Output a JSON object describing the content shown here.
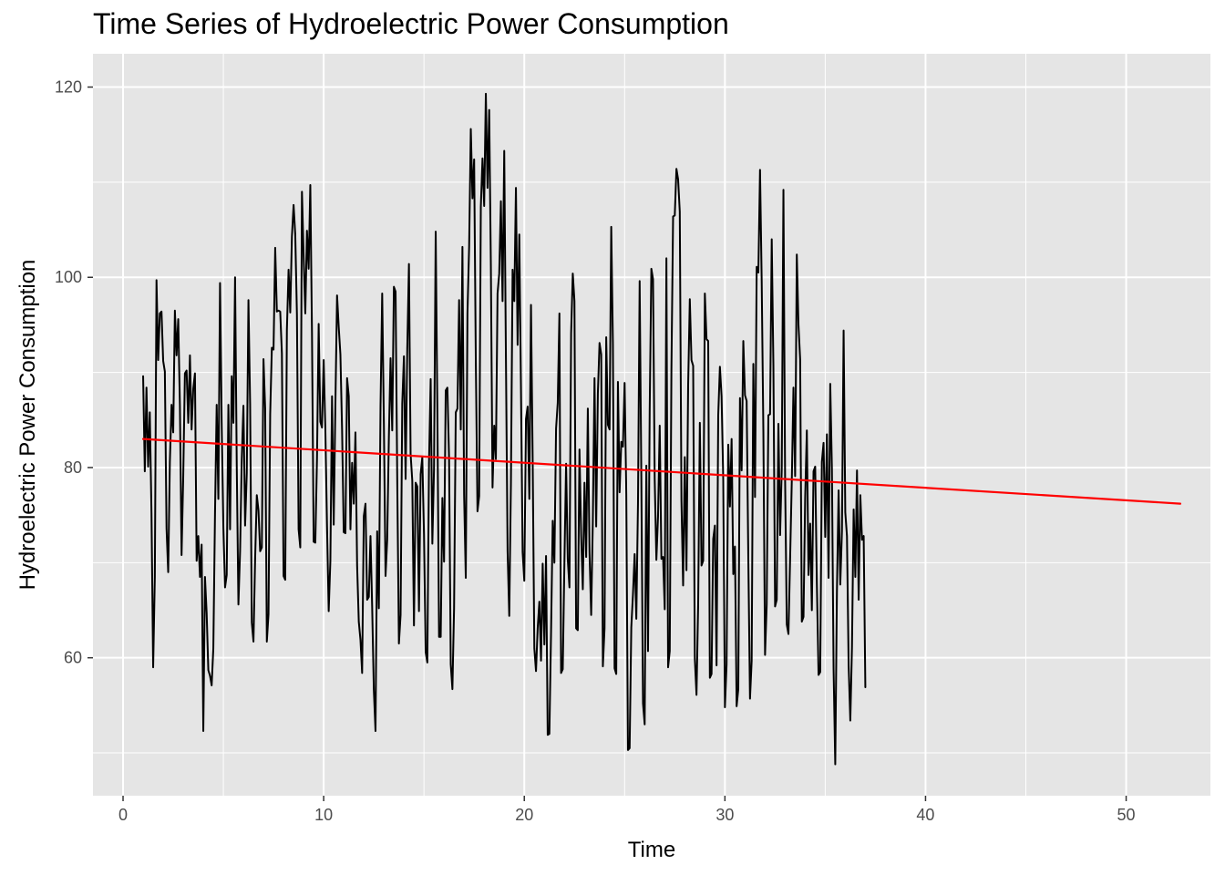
{
  "chart_data": {
    "type": "line",
    "title": "Time Series of Hydroelectric Power Consumption",
    "xlabel": "Time",
    "ylabel": "Hydroelectric Power Consumption",
    "xlim": [
      -1.5,
      54.2
    ],
    "ylim": [
      45.5,
      123.5
    ],
    "x_ticks": [
      0,
      10,
      20,
      30,
      40,
      50
    ],
    "y_ticks": [
      60,
      80,
      100,
      120
    ],
    "grid": true,
    "background": "#e5e5e5",
    "grid_color": "#ffffff",
    "series": [
      {
        "name": "",
        "color": "#000000",
        "x_start": 1.0,
        "x_step": 0.0833333,
        "values": [
          89.6,
          79.6,
          88.4,
          80.1,
          85.8,
          75.2,
          59.0,
          68.5,
          99.7,
          91.3,
          96.2,
          96.4,
          91.2,
          90.1,
          73.6,
          69.0,
          80.6,
          86.6,
          83.7,
          96.5,
          91.8,
          95.6,
          86.5,
          70.8,
          79.1,
          89.9,
          90.2,
          84.7,
          91.8,
          84.0,
          88.3,
          89.9,
          70.2,
          72.8,
          68.5,
          71.9,
          52.3,
          68.5,
          64.7,
          58.7,
          58.1,
          57.1,
          61.0,
          75.2,
          86.6,
          76.7,
          99.4,
          84.8,
          73.7,
          67.4,
          68.7,
          86.6,
          73.5,
          89.6,
          84.7,
          100.0,
          80.3,
          65.6,
          71.2,
          80.9,
          86.5,
          73.9,
          79.4,
          97.6,
          86.7,
          63.7,
          61.7,
          70.4,
          77.1,
          75.5,
          71.2,
          71.6,
          91.4,
          86.2,
          61.7,
          64.6,
          85.6,
          92.6,
          92.4,
          103.1,
          96.4,
          96.5,
          96.4,
          92.0,
          68.6,
          68.2,
          94.5,
          100.8,
          96.3,
          104.3,
          107.6,
          104.5,
          96.1,
          73.5,
          71.6,
          109.0,
          102.3,
          96.2,
          104.9,
          100.9,
          109.7,
          94.2,
          72.2,
          72.1,
          80.9,
          95.1,
          84.8,
          84.2,
          91.3,
          84.0,
          73.8,
          64.9,
          70.2,
          87.5,
          74.0,
          86.5,
          98.1,
          94.8,
          91.9,
          84.0,
          73.2,
          73.1,
          89.4,
          87.5,
          73.5,
          80.5,
          76.2,
          83.7,
          69.7,
          63.8,
          61.9,
          58.4,
          74.9,
          76.2,
          66.1,
          66.4,
          72.8,
          65.3,
          56.6,
          52.3,
          73.3,
          65.2,
          86.5,
          98.3,
          84.7,
          68.6,
          72.4,
          83.2,
          91.5,
          83.9,
          99.0,
          98.5,
          78.7,
          61.5,
          64.5,
          86.7,
          91.7,
          78.8,
          92.5,
          101.4,
          81.4,
          78.6,
          63.4,
          78.4,
          78.0,
          64.9,
          79.3,
          81.1,
          73.0,
          60.6,
          59.5,
          80.4,
          89.3,
          72.0,
          79.9,
          104.8,
          86.1,
          62.2,
          62.2,
          76.8,
          70.1,
          88.1,
          88.4,
          81.0,
          59.3,
          56.7,
          65.2,
          85.8,
          86.2,
          97.6,
          84.0,
          103.2,
          77.1,
          68.4,
          96.2,
          103.2,
          115.6,
          108.3,
          112.4,
          91.1,
          75.4,
          77.0,
          107.4,
          112.5,
          107.5,
          119.3,
          109.4,
          117.6,
          101.2,
          77.9,
          84.4,
          80.9,
          98.3,
          100.4,
          108.0,
          97.5,
          113.3,
          91.8,
          71.2,
          64.4,
          78.3,
          100.8,
          97.5,
          109.4,
          92.9,
          104.5,
          88.5,
          71.1,
          68.1,
          85.1,
          86.4,
          76.7,
          97.1,
          81.1,
          61.0,
          58.6,
          63.1,
          65.9,
          59.7,
          69.9,
          61.4,
          70.7,
          51.9,
          52.0,
          62.6,
          74.4,
          70.0,
          84.1,
          86.8,
          96.2,
          58.4,
          58.8,
          70.0,
          80.4,
          70.4,
          67.4,
          94.1,
          100.4,
          97.5,
          63.1,
          62.9,
          81.9,
          72.9,
          67.2,
          78.4,
          70.6,
          86.2,
          71.1,
          64.5,
          74.4,
          89.4,
          73.8,
          87.8,
          93.1,
          91.9,
          59.1,
          63.1,
          93.7,
          84.5,
          84.0,
          105.3,
          93.0,
          58.9,
          58.3,
          89.0,
          77.4,
          82.7,
          82.2,
          88.9,
          77.2,
          50.3,
          50.5,
          63.2,
          66.7,
          70.9,
          64.1,
          76.2,
          99.6,
          79.0,
          55.2,
          53.0,
          80.2,
          60.7,
          86.0,
          100.9,
          99.8,
          78.8,
          70.3,
          74.9,
          84.4,
          70.4,
          70.6,
          65.1,
          102.0,
          59.0,
          60.7,
          90.2,
          106.4,
          106.5,
          111.4,
          110.3,
          106.9,
          76.5,
          67.6,
          81.1,
          69.2,
          88.6,
          97.7,
          91.3,
          90.7,
          59.9,
          56.1,
          65.6,
          84.7,
          69.7,
          70.2,
          98.3,
          93.5,
          93.3,
          57.9,
          58.3,
          72.5,
          73.9,
          59.2,
          85.5,
          90.6,
          87.5,
          78.8,
          54.8,
          59.3,
          82.4,
          75.9,
          83.0,
          68.8,
          71.7,
          54.9,
          56.7,
          87.3,
          79.7,
          93.3,
          87.6,
          87.0,
          70.3,
          55.7,
          59.7,
          90.9,
          76.9,
          101.1,
          100.5,
          111.3,
          99.6,
          83.7,
          60.3,
          65.6,
          85.5,
          85.6,
          104.0,
          90.7,
          65.4,
          66.1,
          84.6,
          72.9,
          79.9,
          109.2,
          78.7,
          63.5,
          62.5,
          70.4,
          78.6,
          88.4,
          79.1,
          102.4,
          95.0,
          91.4,
          63.8,
          64.3,
          76.8,
          83.9,
          68.7,
          74.1,
          65.0,
          79.6,
          80.1,
          67.7,
          58.2,
          58.5,
          80.6,
          82.6,
          72.7,
          83.5,
          68.4,
          88.8,
          79.9,
          58.8,
          48.8,
          67.0,
          77.6,
          67.7,
          73.3,
          94.4,
          75.3,
          72.8,
          59.2,
          53.4,
          61.1,
          75.6,
          68.5,
          79.7,
          66.1,
          77.1,
          72.4,
          72.8,
          56.9
        ]
      },
      {
        "name": "",
        "color": "#ff0000",
        "kind": "trend",
        "x": [
          1.0,
          52.7
        ],
        "values": [
          83.0,
          76.2
        ]
      }
    ]
  }
}
